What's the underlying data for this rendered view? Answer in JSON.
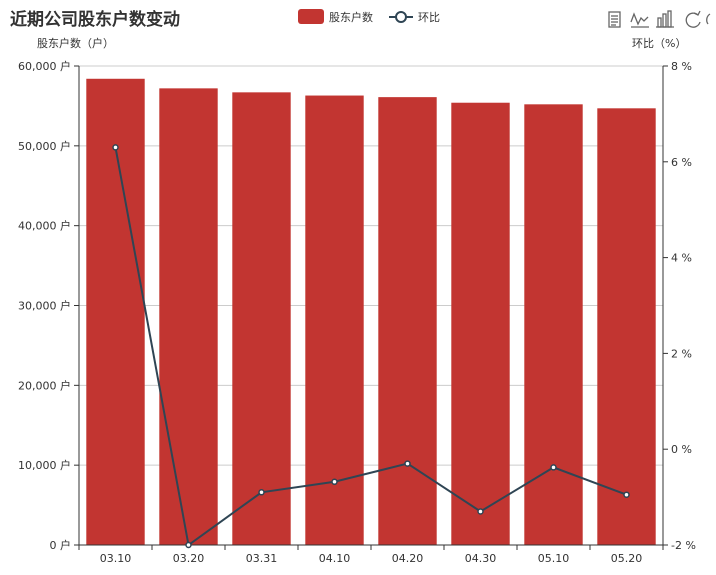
{
  "chart_data": {
    "type": "bar",
    "title": "近期公司股东户数变动",
    "categories": [
      "03.10",
      "03.20",
      "03.31",
      "04.10",
      "04.20",
      "04.30",
      "05.10",
      "05.20"
    ],
    "series": [
      {
        "name": "股东户数",
        "type": "bar",
        "axis": "left",
        "color": "#c23531",
        "values": [
          58400,
          57200,
          56700,
          56300,
          56100,
          55400,
          55200,
          54700
        ]
      },
      {
        "name": "环比",
        "type": "line",
        "axis": "right",
        "color": "#2f4554",
        "values": [
          6.3,
          -2.0,
          -0.9,
          -0.68,
          -0.3,
          -1.3,
          -0.38,
          -0.95
        ]
      }
    ],
    "y_left": {
      "label": "股东户数（户）",
      "ylim": [
        0,
        60000
      ],
      "ticks": [
        0,
        10000,
        20000,
        30000,
        40000,
        50000,
        60000
      ],
      "tick_labels": [
        "0 户",
        "10,000 户",
        "20,000 户",
        "30,000 户",
        "40,000 户",
        "50,000 户",
        "60,000 户"
      ]
    },
    "y_right": {
      "label": "环比（%）",
      "ylim": [
        -2,
        8
      ],
      "ticks": [
        -2,
        0,
        2,
        4,
        6,
        8
      ],
      "tick_labels": [
        "-2 %",
        "0 %",
        "2 %",
        "4 %",
        "6 %",
        "8 %"
      ]
    },
    "grid": true,
    "legend": "top-center"
  },
  "toolbox": {
    "icons": [
      "data-view-icon",
      "line-chart-icon",
      "bar-chart-icon",
      "restore-icon"
    ]
  }
}
